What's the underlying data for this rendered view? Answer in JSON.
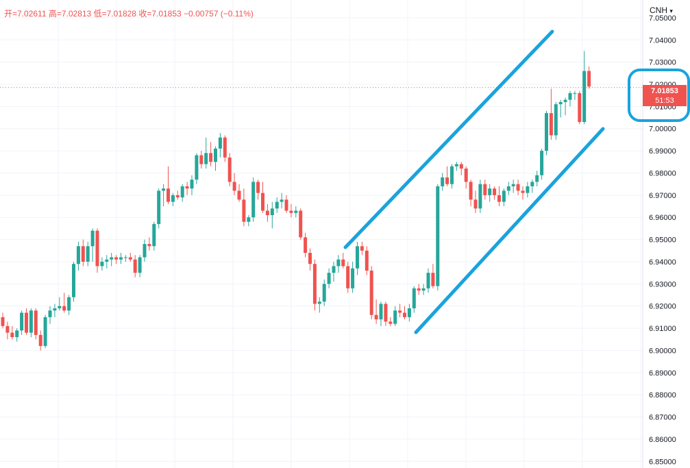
{
  "header": {
    "open_label": "开=7.02611",
    "high_label": "高=7.02813",
    "low_label": "低=7.01828",
    "close_label": "收=7.01853",
    "change_label": "−0.00757 (−0.11%)"
  },
  "currency_selector": {
    "label": "CNH",
    "icon": "chevron-down-icon"
  },
  "price_badge": {
    "price": "7.01853",
    "countdown": "51:53"
  },
  "colors": {
    "up": "#26a69a",
    "down": "#ef5350",
    "annotation": "#1aa3dc",
    "grid": "#f0f3fa"
  },
  "chart_data": {
    "type": "candlestick",
    "y_ticks": [
      "7.05000",
      "7.04000",
      "7.03000",
      "7.02000",
      "7.01000",
      "7.00000",
      "6.99000",
      "6.98000",
      "6.97000",
      "6.96000",
      "6.95000",
      "6.94000",
      "6.93000",
      "6.92000",
      "6.91000",
      "6.90000",
      "6.89000",
      "6.88000",
      "6.87000",
      "6.86000",
      "6.85000"
    ],
    "ylim": [
      6.847,
      7.058
    ],
    "last_price": 7.01853,
    "candles": [
      [
        6.915,
        6.917,
        6.91,
        6.911
      ],
      [
        6.911,
        6.913,
        6.905,
        6.908
      ],
      [
        6.908,
        6.911,
        6.905,
        6.906
      ],
      [
        6.906,
        6.91,
        6.904,
        6.909
      ],
      [
        6.909,
        6.918,
        6.907,
        6.917
      ],
      [
        6.917,
        6.919,
        6.907,
        6.908
      ],
      [
        6.908,
        6.919,
        6.906,
        6.918
      ],
      [
        6.918,
        6.919,
        6.905,
        6.907
      ],
      [
        6.907,
        6.909,
        6.9,
        6.902
      ],
      [
        6.902,
        6.916,
        6.901,
        6.915
      ],
      [
        6.915,
        6.92,
        6.912,
        6.918
      ],
      [
        6.918,
        6.921,
        6.915,
        6.919
      ],
      [
        6.919,
        6.924,
        6.918,
        6.92
      ],
      [
        6.92,
        6.926,
        6.917,
        6.918
      ],
      [
        6.918,
        6.925,
        6.916,
        6.924
      ],
      [
        6.924,
        6.94,
        6.922,
        6.939
      ],
      [
        6.939,
        6.949,
        6.936,
        6.947
      ],
      [
        6.947,
        6.95,
        6.938,
        6.94
      ],
      [
        6.94,
        6.949,
        6.938,
        6.947
      ],
      [
        6.947,
        6.955,
        6.94,
        6.954
      ],
      [
        6.954,
        6.955,
        6.935,
        6.938
      ],
      [
        6.938,
        6.942,
        6.936,
        6.94
      ],
      [
        6.94,
        6.943,
        6.937,
        6.941
      ],
      [
        6.941,
        6.944,
        6.938,
        6.942
      ],
      [
        6.942,
        6.943,
        6.939,
        6.941
      ],
      [
        6.941,
        6.944,
        6.939,
        6.942
      ],
      [
        6.942,
        6.943,
        6.94,
        6.942
      ],
      [
        6.942,
        6.944,
        6.94,
        6.941
      ],
      [
        6.941,
        6.943,
        6.933,
        6.935
      ],
      [
        6.935,
        6.943,
        6.933,
        6.942
      ],
      [
        6.942,
        6.95,
        6.94,
        6.948
      ],
      [
        6.948,
        6.951,
        6.945,
        6.947
      ],
      [
        6.947,
        6.958,
        6.945,
        6.957
      ],
      [
        6.957,
        6.973,
        6.955,
        6.972
      ],
      [
        6.972,
        6.975,
        6.965,
        6.973
      ],
      [
        6.973,
        6.983,
        6.966,
        6.967
      ],
      [
        6.967,
        6.971,
        6.965,
        6.97
      ],
      [
        6.97,
        6.972,
        6.968,
        6.969
      ],
      [
        6.969,
        6.975,
        6.967,
        6.974
      ],
      [
        6.974,
        6.976,
        6.97,
        6.973
      ],
      [
        6.973,
        6.979,
        6.97,
        6.977
      ],
      [
        6.977,
        6.989,
        6.975,
        6.988
      ],
      [
        6.988,
        6.99,
        6.982,
        6.984
      ],
      [
        6.984,
        6.996,
        6.982,
        6.989
      ],
      [
        6.989,
        6.994,
        6.983,
        6.985
      ],
      [
        6.985,
        6.992,
        6.981,
        6.991
      ],
      [
        6.991,
        6.998,
        6.987,
        6.996
      ],
      [
        6.996,
        6.997,
        6.985,
        6.987
      ],
      [
        6.987,
        6.989,
        6.974,
        6.976
      ],
      [
        6.976,
        6.98,
        6.97,
        6.972
      ],
      [
        6.972,
        6.975,
        6.967,
        6.968
      ],
      [
        6.968,
        6.973,
        6.956,
        6.958
      ],
      [
        6.958,
        6.961,
        6.956,
        6.96
      ],
      [
        6.96,
        6.978,
        6.958,
        6.976
      ],
      [
        6.976,
        6.977,
        6.968,
        6.971
      ],
      [
        6.971,
        6.976,
        6.962,
        6.963
      ],
      [
        6.963,
        6.966,
        6.958,
        6.961
      ],
      [
        6.961,
        6.967,
        6.955,
        6.964
      ],
      [
        6.964,
        6.969,
        6.962,
        6.967
      ],
      [
        6.967,
        6.971,
        6.964,
        6.968
      ],
      [
        6.968,
        6.97,
        6.962,
        6.963
      ],
      [
        6.963,
        6.966,
        6.96,
        6.962
      ],
      [
        6.962,
        6.965,
        6.96,
        6.963
      ],
      [
        6.963,
        6.964,
        6.95,
        6.951
      ],
      [
        6.951,
        6.953,
        6.942,
        6.944
      ],
      [
        6.944,
        6.946,
        6.936,
        6.939
      ],
      [
        6.939,
        6.941,
        6.918,
        6.921
      ],
      [
        6.921,
        6.924,
        6.917,
        6.922
      ],
      [
        6.922,
        6.932,
        6.92,
        6.93
      ],
      [
        6.93,
        6.937,
        6.928,
        6.935
      ],
      [
        6.935,
        6.94,
        6.931,
        6.938
      ],
      [
        6.938,
        6.943,
        6.935,
        6.941
      ],
      [
        6.941,
        6.944,
        6.937,
        6.938
      ],
      [
        6.938,
        6.94,
        6.926,
        6.928
      ],
      [
        6.928,
        6.94,
        6.926,
        6.937
      ],
      [
        6.937,
        6.949,
        6.934,
        6.947
      ],
      [
        6.947,
        6.949,
        6.943,
        6.945
      ],
      [
        6.945,
        6.947,
        6.934,
        6.936
      ],
      [
        6.936,
        6.938,
        6.914,
        6.916
      ],
      [
        6.916,
        6.923,
        6.912,
        6.914
      ],
      [
        6.914,
        6.922,
        6.911,
        6.921
      ],
      [
        6.921,
        6.922,
        6.911,
        6.913
      ],
      [
        6.913,
        6.915,
        6.911,
        6.912
      ],
      [
        6.912,
        6.92,
        6.911,
        6.918
      ],
      [
        6.918,
        6.921,
        6.915,
        6.917
      ],
      [
        6.917,
        6.92,
        6.914,
        6.915
      ],
      [
        6.915,
        6.921,
        6.913,
        6.919
      ],
      [
        6.919,
        6.929,
        6.917,
        6.928
      ],
      [
        6.928,
        6.93,
        6.925,
        6.927
      ],
      [
        6.927,
        6.93,
        6.925,
        6.928
      ],
      [
        6.928,
        6.937,
        6.926,
        6.935
      ],
      [
        6.935,
        6.939,
        6.928,
        6.929
      ],
      [
        6.929,
        6.975,
        6.927,
        6.974
      ],
      [
        6.974,
        6.98,
        6.972,
        6.978
      ],
      [
        6.978,
        6.983,
        6.974,
        6.975
      ],
      [
        6.975,
        6.984,
        6.973,
        6.983
      ],
      [
        6.983,
        6.985,
        6.981,
        6.984
      ],
      [
        6.984,
        6.985,
        6.979,
        6.982
      ],
      [
        6.982,
        6.983,
        6.973,
        6.976
      ],
      [
        6.976,
        6.977,
        6.965,
        6.968
      ],
      [
        6.968,
        6.972,
        6.962,
        6.964
      ],
      [
        6.964,
        6.977,
        6.962,
        6.975
      ],
      [
        6.975,
        6.977,
        6.968,
        6.97
      ],
      [
        6.97,
        6.975,
        6.967,
        6.973
      ],
      [
        6.973,
        6.974,
        6.968,
        6.97
      ],
      [
        6.97,
        6.974,
        6.965,
        6.967
      ],
      [
        6.967,
        6.973,
        6.965,
        6.972
      ],
      [
        6.972,
        6.976,
        6.97,
        6.974
      ],
      [
        6.974,
        6.977,
        6.971,
        6.975
      ],
      [
        6.975,
        6.977,
        6.97,
        6.972
      ],
      [
        6.972,
        6.974,
        6.968,
        6.971
      ],
      [
        6.971,
        6.976,
        6.969,
        6.974
      ],
      [
        6.974,
        6.977,
        6.971,
        6.976
      ],
      [
        6.976,
        6.981,
        6.974,
        6.979
      ],
      [
        6.979,
        6.991,
        6.977,
        6.99
      ],
      [
        6.99,
        7.008,
        6.988,
        7.007
      ],
      [
        7.007,
        7.018,
        6.995,
        6.997
      ],
      [
        6.997,
        7.012,
        6.995,
        7.011
      ],
      [
        7.011,
        7.013,
        7.005,
        7.012
      ],
      [
        7.012,
        7.014,
        7.006,
        7.013
      ],
      [
        7.013,
        7.017,
        7.01,
        7.016
      ],
      [
        7.016,
        7.017,
        7.013,
        7.016
      ],
      [
        7.016,
        7.017,
        7.002,
        7.003
      ],
      [
        7.003,
        7.035,
        7.002,
        7.026
      ],
      [
        7.026,
        7.028,
        7.018,
        7.019
      ]
    ]
  }
}
